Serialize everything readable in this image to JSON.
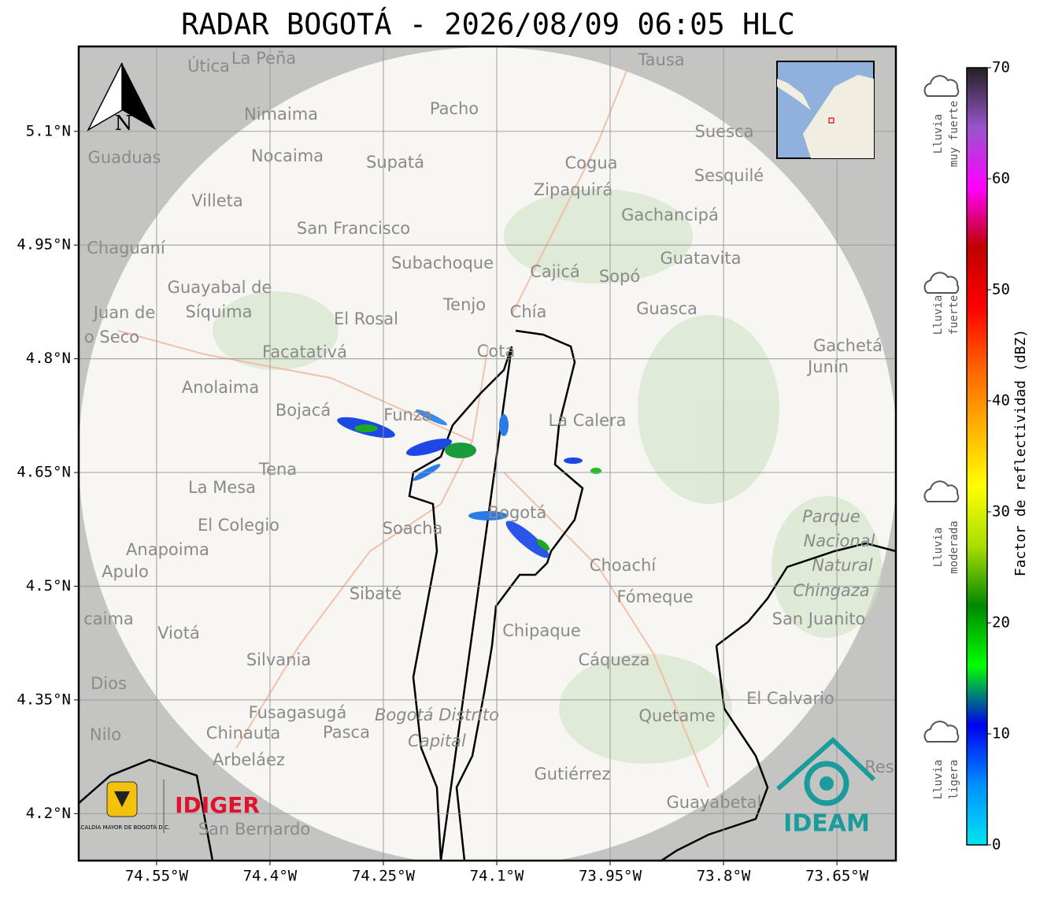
{
  "chart_data": {
    "type": "radar-map",
    "title": "RADAR BOGOTÁ - 2026/08/09 06:05 HLC",
    "xlim": [
      -74.653,
      -73.572
    ],
    "ylim": [
      4.138,
      5.212
    ],
    "xticks": [
      {
        "value": -74.55,
        "label": "74.55°W"
      },
      {
        "value": -74.4,
        "label": "74.4°W"
      },
      {
        "value": -74.25,
        "label": "74.25°W"
      },
      {
        "value": -74.1,
        "label": "74.1°W"
      },
      {
        "value": -73.95,
        "label": "73.95°W"
      },
      {
        "value": -73.8,
        "label": "73.8°W"
      },
      {
        "value": -73.65,
        "label": "73.65°W"
      }
    ],
    "yticks": [
      {
        "value": 5.1,
        "label": "5.1°N"
      },
      {
        "value": 4.95,
        "label": "4.95°N"
      },
      {
        "value": 4.8,
        "label": "4.8°N"
      },
      {
        "value": 4.65,
        "label": "4.65°N"
      },
      {
        "value": 4.5,
        "label": "4.5°N"
      },
      {
        "value": 4.35,
        "label": "4.35°N"
      },
      {
        "value": 4.2,
        "label": "4.2°N"
      }
    ],
    "grid": true,
    "colorbar": {
      "label": "Factor de reflectividad (dBZ)",
      "lim": [
        0,
        70
      ],
      "ticks": [
        0,
        10,
        20,
        30,
        40,
        50,
        60,
        70
      ],
      "colors": [
        "#00e5ee",
        "#0090ff",
        "#0000f0",
        "#00ff00",
        "#008800",
        "#aadd00",
        "#ffff00",
        "#ffb000",
        "#ff6000",
        "#ff0000",
        "#c00000",
        "#ff00ff",
        "#9955cc",
        "#222222"
      ]
    },
    "rain_classes": [
      [
        "Lluvia",
        "muy fuerte"
      ],
      [
        "Lluvia",
        "fuerte"
      ],
      [
        "Lluvia",
        "moderada"
      ],
      [
        "Lluvia",
        "ligera"
      ]
    ],
    "north": "N",
    "logos": {
      "alcaldia": "ALCALDÍA MAYOR DE BOGOTÁ D.C.",
      "idiger": "IDIGER",
      "ideam": "IDEAM"
    },
    "places": [
      "Útica",
      "La Peña",
      "Tausa",
      "Pacho",
      "Nimaima",
      "Guaduas",
      "Nocaima",
      "Supatá",
      "Cogua",
      "Suesca",
      "Sesquilé",
      "Zipaquirá",
      "Villeta",
      "Gachancipá",
      "San Francisco",
      "Chaguaní",
      "Guatavita",
      "Subachoque",
      "Cajicá",
      "Sopó",
      "Guayabal de",
      "Síquima",
      "Juan de",
      "Tenjo",
      "Chía",
      "Guasca",
      "El Rosal",
      "o Seco",
      "Cota",
      "Gachetá",
      "Junín",
      "Facatativá",
      "Anolaima",
      "Bojacá",
      "Funza",
      "La Calera",
      "Tena",
      "La Mesa",
      "El Colegio",
      "Bogotá",
      "Soacha",
      "Parque",
      "Nacional",
      "Natural",
      "Chingaza",
      "Anapoima",
      "Apulo",
      "Choachí",
      "Sibaté",
      "Fómeque",
      "San Juanito",
      "caima",
      "Viotá",
      "Chipaque",
      "Silvania",
      "Cáqueza",
      "Dios",
      "El Calvario",
      "Fusagasugá",
      "Bogotá Distrito",
      "Capital",
      "Quetame",
      "Nilo",
      "Chinauta",
      "Pasca",
      "Arbeláez",
      "Res",
      "Gutiérrez",
      "Guayabetal",
      "San Bernardo"
    ]
  }
}
